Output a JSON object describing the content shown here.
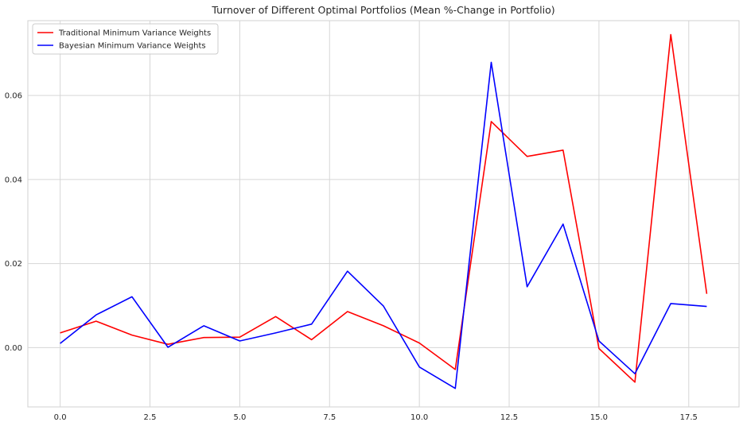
{
  "chart_data": {
    "type": "line",
    "title": "Turnover of Different Optimal Portfolios (Mean %-Change in Portfolio)",
    "xlabel": "",
    "ylabel": "",
    "x": [
      0,
      1,
      2,
      3,
      4,
      5,
      6,
      7,
      8,
      9,
      10,
      11,
      12,
      13,
      14,
      15,
      16,
      17,
      18
    ],
    "xlim": [
      -0.9,
      18.9
    ],
    "ylim": [
      -0.0141,
      0.0778
    ],
    "xticks": [
      0.0,
      2.5,
      5.0,
      7.5,
      10.0,
      12.5,
      15.0,
      17.5
    ],
    "xtick_labels": [
      "0.0",
      "2.5",
      "5.0",
      "7.5",
      "10.0",
      "12.5",
      "15.0",
      "17.5"
    ],
    "yticks": [
      0.0,
      0.02,
      0.04,
      0.06
    ],
    "ytick_labels": [
      "0.00",
      "0.02",
      "0.04",
      "0.06"
    ],
    "grid": true,
    "legend_position": "top-left",
    "series": [
      {
        "name": "Traditional Minimum Variance Weights",
        "color": "#ff0000",
        "values": [
          0.0035,
          0.0063,
          0.003,
          0.0008,
          0.0024,
          0.0025,
          0.0074,
          0.0019,
          0.0086,
          0.0052,
          0.0011,
          -0.0052,
          0.0538,
          0.0455,
          0.047,
          -0.0002,
          -0.0082,
          0.0745,
          0.0128
        ]
      },
      {
        "name": "Bayesian Minimum Variance Weights",
        "color": "#0000ff",
        "values": [
          0.001,
          0.0078,
          0.0121,
          0.0001,
          0.0052,
          0.0016,
          0.0035,
          0.0056,
          0.0182,
          0.0099,
          -0.0046,
          -0.0097,
          0.0679,
          0.0145,
          0.0294,
          0.0016,
          -0.0062,
          0.0105,
          0.0098
        ]
      }
    ]
  }
}
